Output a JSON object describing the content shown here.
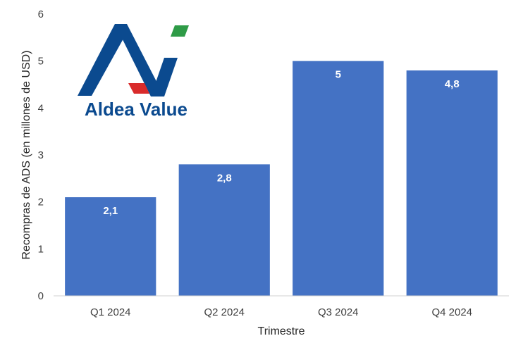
{
  "chart_data": {
    "type": "bar",
    "categories": [
      "Q1 2024",
      "Q2 2024",
      "Q3 2024",
      "Q4 2024"
    ],
    "values": [
      2.1,
      2.8,
      5,
      4.8
    ],
    "data_labels": [
      "2,1",
      "2,8",
      "5",
      "4,8"
    ],
    "yticks": [
      "0",
      "1",
      "2",
      "3",
      "4",
      "5",
      "6"
    ],
    "ylim": [
      0,
      6
    ],
    "xlabel": "Trimestre",
    "ylabel": "Recompras de ADS (en millones de USD)",
    "grid": false,
    "bar_color": "#4472C4"
  },
  "logo": {
    "text": "Aldea Value",
    "colors": {
      "blue": "#0B4A8F",
      "green": "#2E9B47",
      "red": "#D92B2B"
    }
  }
}
